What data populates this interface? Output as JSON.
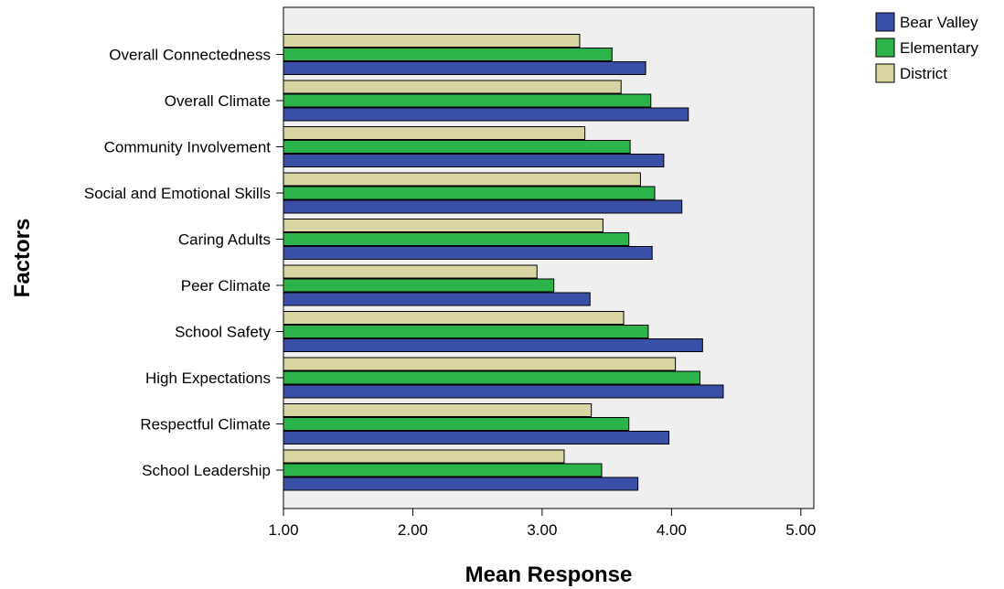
{
  "chart_data": {
    "type": "bar",
    "orientation": "horizontal",
    "title": "",
    "xlabel": "Mean Response",
    "ylabel": "Factors",
    "xlim": [
      1.0,
      5.1
    ],
    "x_ticks": [
      "1.00",
      "2.00",
      "3.00",
      "4.00",
      "5.00"
    ],
    "x_tick_values": [
      1,
      2,
      3,
      4,
      5
    ],
    "grid": false,
    "legend_position": "top-right",
    "categories": [
      "Overall Connectedness",
      "Overall Climate",
      "Community Involvement",
      "Social and Emotional Skills",
      "Caring Adults",
      "Peer Climate",
      "School Safety",
      "High Expectations",
      "Respectful Climate",
      "School Leadership"
    ],
    "series": [
      {
        "name": "Bear Valley",
        "color": "#3a4fa6",
        "values": [
          3.8,
          4.13,
          3.94,
          4.08,
          3.85,
          3.37,
          4.24,
          4.4,
          3.98,
          3.74
        ]
      },
      {
        "name": "Elementary",
        "color": "#2cb34a",
        "values": [
          3.54,
          3.84,
          3.68,
          3.87,
          3.67,
          3.09,
          3.82,
          4.22,
          3.67,
          3.46
        ]
      },
      {
        "name": "District",
        "color": "#d8d5a2",
        "values": [
          3.29,
          3.61,
          3.33,
          3.76,
          3.47,
          2.96,
          3.63,
          4.03,
          3.38,
          3.17
        ]
      }
    ],
    "plot_background": "#efefef"
  }
}
